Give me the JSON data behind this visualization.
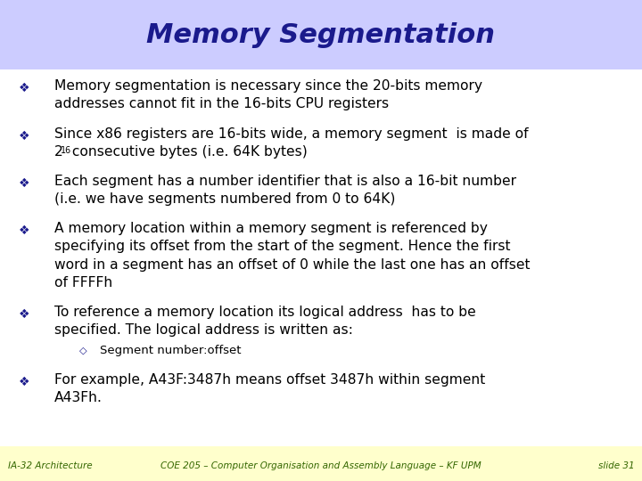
{
  "title": "Memory Segmentation",
  "title_color": "#1a1a8c",
  "title_bg_color": "#ccccff",
  "body_bg_color": "#ffffff",
  "footer_bg_color": "#ffffcc",
  "bullet_color": "#1a1a8c",
  "text_color": "#000000",
  "footer_text_color": "#336600",
  "bullets": [
    {
      "lines": [
        "Memory segmentation is necessary since the 20-bits memory",
        "addresses cannot fit in the 16-bits CPU registers"
      ],
      "sub": []
    },
    {
      "lines": [
        "Since x86 registers are 16-bits wide, a memory segment  is made of",
        "2^^16^^ consecutive bytes (i.e. 64K bytes)"
      ],
      "sub": []
    },
    {
      "lines": [
        "Each segment has a number identifier that is also a 16-bit number",
        "(i.e. we have segments numbered from 0 to 64K)"
      ],
      "sub": []
    },
    {
      "lines": [
        "A memory location within a memory segment is referenced by",
        "specifying its offset from the start of the segment. Hence the first",
        "word in a segment has an offset of 0 while the last one has an offset",
        "of FFFFh"
      ],
      "sub": []
    },
    {
      "lines": [
        "To reference a memory location its logical address  has to be",
        "specified. The logical address is written as:"
      ],
      "sub": [
        "Segment number:offset"
      ]
    },
    {
      "lines": [
        "For example, A43F:3487h means offset 3487h within segment",
        "A43Fh."
      ],
      "sub": []
    }
  ],
  "footer_left": "IA-32 Architecture",
  "footer_center": "COE 205 – Computer Organisation and Assembly Language – KF UPM",
  "footer_right": "slide 31",
  "title_fontsize": 22,
  "body_fontsize": 11.2,
  "sub_fontsize": 9.5,
  "footer_fontsize": 7.5
}
